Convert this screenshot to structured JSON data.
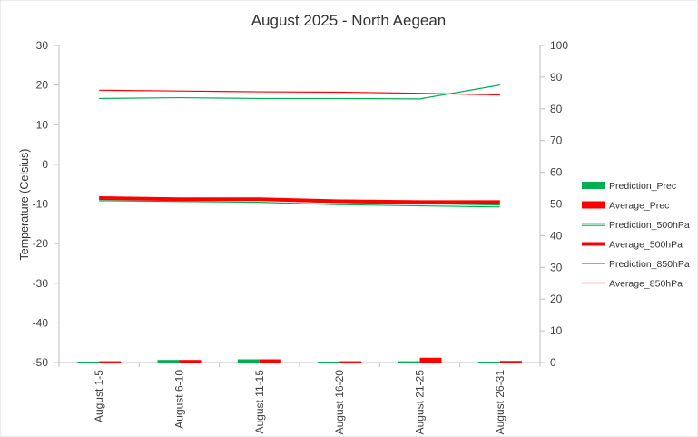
{
  "chart_data": {
    "type": "bar+line",
    "title": "August 2025 - North Aegean",
    "ylabel": "Temperature  (Celsius)",
    "y2label": "",
    "xlabel": "",
    "categories": [
      "August 1-5",
      "August 6-10",
      "August 11-15",
      "August 16-20",
      "August 21-25",
      "August 26-31"
    ],
    "ylim": [
      -50,
      30
    ],
    "yticks": [
      30,
      20,
      10,
      0,
      -10,
      -20,
      -30,
      -40,
      -50
    ],
    "y2lim": [
      0,
      100
    ],
    "y2ticks": [
      100,
      90,
      80,
      70,
      60,
      50,
      40,
      30,
      20,
      10,
      0
    ],
    "legend_position": "right",
    "grid": false,
    "series": [
      {
        "name": "Prediction_Prec",
        "kind": "bar",
        "axis": "secondary",
        "color": "#00b050",
        "values": [
          0.3,
          0.8,
          1.0,
          0.3,
          0.4,
          0.3
        ]
      },
      {
        "name": "Average_Prec",
        "kind": "bar",
        "axis": "secondary",
        "color": "#ff0000",
        "values": [
          0.4,
          0.8,
          1.0,
          0.4,
          1.5,
          0.5
        ]
      },
      {
        "name": "Prediction_500hPa",
        "kind": "line",
        "style": "double",
        "axis": "primary",
        "color": "#00b050",
        "values": [
          -8.9,
          -9.1,
          -9.3,
          -9.9,
          -10.2,
          -10.5
        ]
      },
      {
        "name": "Average_500hPa",
        "kind": "line",
        "style": "thick",
        "axis": "primary",
        "color": "#ff0000",
        "values": [
          -8.5,
          -8.8,
          -8.8,
          -9.3,
          -9.5,
          -9.5
        ]
      },
      {
        "name": "Prediction_850hPa",
        "kind": "line",
        "style": "thin",
        "axis": "primary",
        "color": "#00b050",
        "values": [
          16.6,
          16.8,
          16.6,
          16.6,
          16.5,
          20.0
        ]
      },
      {
        "name": "Average_850hPa",
        "kind": "line",
        "style": "thin",
        "axis": "primary",
        "color": "#ff0000",
        "values": [
          18.7,
          18.5,
          18.3,
          18.2,
          17.9,
          17.5
        ]
      }
    ]
  }
}
